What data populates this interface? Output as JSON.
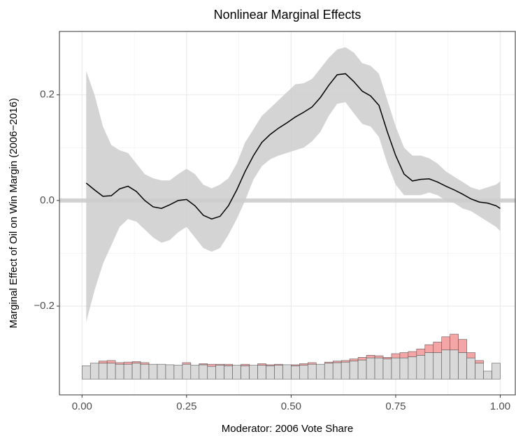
{
  "chart_data": {
    "type": "line",
    "title": "Nonlinear Marginal Effects",
    "xlabel": "Moderator: 2006 Vote Share",
    "ylabel": "Marginal Effect of Oil on Win Margin (2006−2016)",
    "xlim": [
      -0.054,
      1.036
    ],
    "ylim": [
      -0.368,
      0.32
    ],
    "xticks": [
      {
        "value": 0,
        "label": "0.00"
      },
      {
        "value": 0.25,
        "label": "0.25"
      },
      {
        "value": 0.5,
        "label": "0.50"
      },
      {
        "value": 0.75,
        "label": "0.75"
      },
      {
        "value": 1,
        "label": "1.00"
      }
    ],
    "yticks": [
      {
        "value": -0.2,
        "label": "−0.2"
      },
      {
        "value": 0,
        "label": "0.0"
      },
      {
        "value": 0.2,
        "label": "0.2"
      }
    ],
    "grid": true,
    "hline": 0,
    "line_color": "#000000",
    "band_color": "#cccccc",
    "x": [
      0.01,
      0.03,
      0.05,
      0.07,
      0.09,
      0.11,
      0.13,
      0.15,
      0.17,
      0.19,
      0.21,
      0.23,
      0.25,
      0.27,
      0.29,
      0.31,
      0.33,
      0.35,
      0.37,
      0.39,
      0.41,
      0.43,
      0.45,
      0.47,
      0.49,
      0.51,
      0.53,
      0.55,
      0.57,
      0.59,
      0.61,
      0.63,
      0.65,
      0.67,
      0.69,
      0.71,
      0.73,
      0.75,
      0.77,
      0.79,
      0.81,
      0.83,
      0.85,
      0.87,
      0.89,
      0.91,
      0.93,
      0.95,
      0.97,
      0.99,
      1.0
    ],
    "values": [
      0.033,
      0.02,
      0.008,
      0.009,
      0.022,
      0.027,
      0.017,
      0.0,
      -0.012,
      -0.015,
      -0.008,
      0.0,
      0.002,
      -0.01,
      -0.028,
      -0.035,
      -0.03,
      -0.01,
      0.02,
      0.055,
      0.085,
      0.11,
      0.125,
      0.137,
      0.147,
      0.158,
      0.167,
      0.177,
      0.195,
      0.218,
      0.238,
      0.24,
      0.225,
      0.207,
      0.198,
      0.18,
      0.13,
      0.085,
      0.05,
      0.037,
      0.04,
      0.041,
      0.035,
      0.027,
      0.02,
      0.012,
      0.003,
      -0.003,
      -0.005,
      -0.01,
      -0.015
    ],
    "lower": [
      -0.23,
      -0.17,
      -0.12,
      -0.085,
      -0.05,
      -0.035,
      -0.04,
      -0.055,
      -0.07,
      -0.08,
      -0.075,
      -0.06,
      -0.05,
      -0.07,
      -0.09,
      -0.097,
      -0.09,
      -0.065,
      -0.035,
      0.0,
      0.04,
      0.065,
      0.078,
      0.085,
      0.09,
      0.095,
      0.1,
      0.112,
      0.13,
      0.16,
      0.183,
      0.186,
      0.165,
      0.145,
      0.14,
      0.12,
      0.07,
      0.03,
      0.01,
      0.01,
      0.01,
      0.015,
      0.01,
      0.0,
      -0.005,
      -0.015,
      -0.02,
      -0.03,
      -0.04,
      -0.05,
      -0.058
    ],
    "upper": [
      0.245,
      0.2,
      0.14,
      0.105,
      0.095,
      0.09,
      0.07,
      0.05,
      0.042,
      0.038,
      0.038,
      0.05,
      0.06,
      0.05,
      0.03,
      0.023,
      0.03,
      0.042,
      0.07,
      0.11,
      0.135,
      0.16,
      0.175,
      0.19,
      0.205,
      0.22,
      0.222,
      0.23,
      0.25,
      0.27,
      0.286,
      0.29,
      0.28,
      0.26,
      0.255,
      0.24,
      0.19,
      0.14,
      0.1,
      0.085,
      0.085,
      0.08,
      0.07,
      0.055,
      0.045,
      0.035,
      0.025,
      0.02,
      0.025,
      0.03,
      0.036
    ],
    "hist": {
      "base": -0.338,
      "gray_color": "#d9d9d9",
      "red_color": "#f4a6a6",
      "bins": [
        0.0,
        0.02,
        0.04,
        0.06,
        0.08,
        0.1,
        0.12,
        0.14,
        0.16,
        0.18,
        0.2,
        0.22,
        0.24,
        0.26,
        0.28,
        0.3,
        0.32,
        0.34,
        0.36,
        0.38,
        0.4,
        0.42,
        0.44,
        0.46,
        0.48,
        0.5,
        0.52,
        0.54,
        0.56,
        0.58,
        0.6,
        0.62,
        0.64,
        0.66,
        0.68,
        0.7,
        0.72,
        0.74,
        0.76,
        0.78,
        0.8,
        0.82,
        0.84,
        0.86,
        0.88,
        0.9,
        0.92,
        0.94,
        0.96,
        0.98,
        1.0
      ],
      "gray": [
        0.025,
        0.03,
        0.03,
        0.03,
        0.028,
        0.028,
        0.03,
        0.028,
        0.028,
        0.028,
        0.027,
        0.026,
        0.028,
        0.026,
        0.027,
        0.024,
        0.026,
        0.025,
        0.026,
        0.025,
        0.026,
        0.026,
        0.025,
        0.026,
        0.027,
        0.025,
        0.026,
        0.028,
        0.028,
        0.03,
        0.031,
        0.032,
        0.034,
        0.036,
        0.04,
        0.04,
        0.038,
        0.04,
        0.04,
        0.042,
        0.045,
        0.05,
        0.05,
        0.055,
        0.055,
        0.05,
        0.04,
        0.03,
        0.015,
        0.03
      ],
      "red": [
        0,
        0,
        0.004,
        0.005,
        0.003,
        0.004,
        0.003,
        0.003,
        0,
        0,
        0,
        0,
        0.003,
        0,
        0.002,
        0.004,
        0.002,
        0.003,
        0,
        0.003,
        0,
        0.003,
        0.002,
        0.002,
        0,
        0.002,
        0.003,
        0.003,
        0,
        0.002,
        0.003,
        0.003,
        0.004,
        0.005,
        0.005,
        0.004,
        0.003,
        0.008,
        0.01,
        0.01,
        0.012,
        0.015,
        0.02,
        0.025,
        0.03,
        0.025,
        0.01,
        0.005,
        0,
        0
      ]
    }
  }
}
